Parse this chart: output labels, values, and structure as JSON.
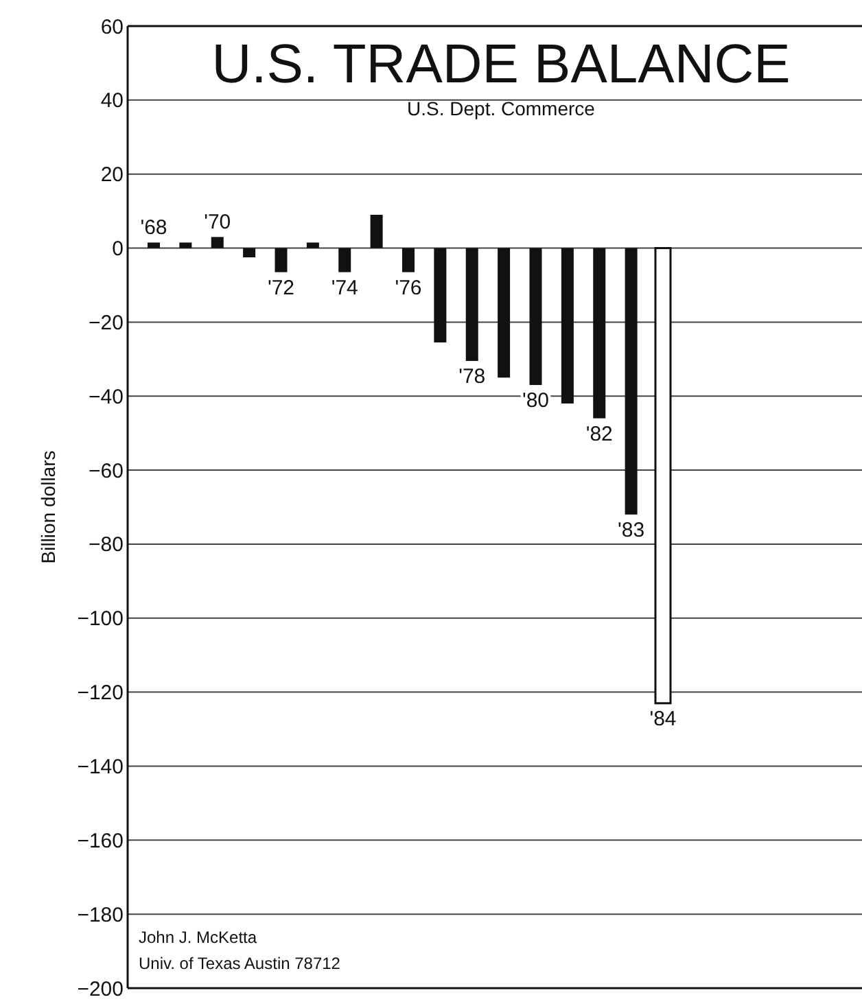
{
  "chart_data": {
    "type": "bar",
    "title": "U.S. TRADE BALANCE",
    "subtitle": "U.S. Dept. Commerce",
    "ylabel": "Billion dollars",
    "categories": [
      "'68",
      null,
      "'70",
      null,
      "'72",
      null,
      "'74",
      null,
      "'76",
      null,
      "'78",
      null,
      "'80",
      null,
      "'82",
      "'83",
      "'84"
    ],
    "values": [
      1.5,
      1.5,
      3,
      -2.5,
      -6.5,
      1.5,
      -6.5,
      9,
      -6.5,
      -25.5,
      -30.5,
      -35,
      -37,
      -42,
      -46,
      -72,
      -123
    ],
    "colors": [
      "#111111",
      "#111111",
      "#111111",
      "#111111",
      "#111111",
      "#111111",
      "#111111",
      "#111111",
      "#111111",
      "#111111",
      "#111111",
      "#111111",
      "#111111",
      "#111111",
      "#111111",
      "#111111",
      "#ffffff"
    ],
    "ylim": [
      -200,
      60
    ],
    "yticks": [
      60,
      40,
      20,
      0,
      {
        "value": -20,
        "label": "−20"
      },
      {
        "value": -40,
        "label": "−40"
      },
      {
        "value": -60,
        "label": "−60"
      },
      {
        "value": -80,
        "label": "−80"
      },
      {
        "value": -100,
        "label": "−100"
      },
      {
        "value": -120,
        "label": "−120"
      },
      {
        "value": -140,
        "label": "−140"
      },
      {
        "value": -160,
        "label": "−160"
      },
      {
        "value": -180,
        "label": "−180"
      },
      {
        "value": -200,
        "label": "−200"
      }
    ],
    "grid": "y",
    "annotations": [
      "John J. McKetta",
      "Univ. of Texas Austin 78712"
    ]
  }
}
